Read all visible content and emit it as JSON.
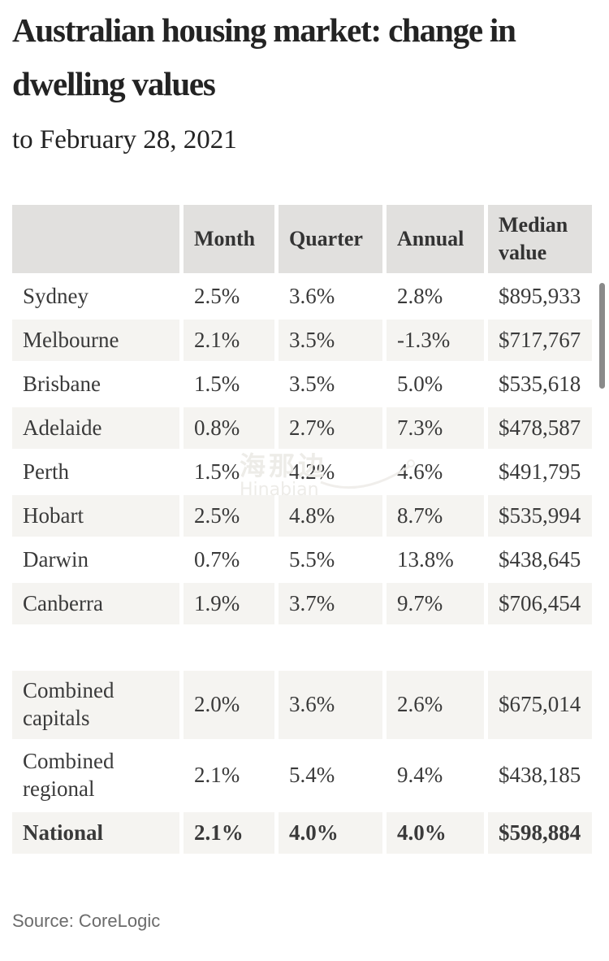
{
  "header": {
    "title": "Australian housing market: change in dwelling values",
    "subtitle": "to February 28, 2021"
  },
  "table": {
    "columns": [
      "",
      "Month",
      "Quarter",
      "Annual",
      "Median value"
    ],
    "rows": [
      {
        "label": "Sydney",
        "month": "2.5%",
        "quarter": "3.6%",
        "annual": "2.8%",
        "median": "$895,933",
        "shade": "white",
        "tall": false,
        "bold": false,
        "spacer_before": false
      },
      {
        "label": "Melbourne",
        "month": "2.1%",
        "quarter": "3.5%",
        "annual": "-1.3%",
        "median": "$717,767",
        "shade": "grey",
        "tall": false,
        "bold": false,
        "spacer_before": false
      },
      {
        "label": "Brisbane",
        "month": "1.5%",
        "quarter": "3.5%",
        "annual": "5.0%",
        "median": "$535,618",
        "shade": "white",
        "tall": false,
        "bold": false,
        "spacer_before": false
      },
      {
        "label": "Adelaide",
        "month": "0.8%",
        "quarter": "2.7%",
        "annual": "7.3%",
        "median": "$478,587",
        "shade": "grey",
        "tall": false,
        "bold": false,
        "spacer_before": false
      },
      {
        "label": "Perth",
        "month": "1.5%",
        "quarter": "4.2%",
        "annual": "4.6%",
        "median": "$491,795",
        "shade": "white",
        "tall": false,
        "bold": false,
        "spacer_before": false
      },
      {
        "label": "Hobart",
        "month": "2.5%",
        "quarter": "4.8%",
        "annual": "8.7%",
        "median": "$535,994",
        "shade": "grey",
        "tall": false,
        "bold": false,
        "spacer_before": false
      },
      {
        "label": "Darwin",
        "month": "0.7%",
        "quarter": "5.5%",
        "annual": "13.8%",
        "median": "$438,645",
        "shade": "white",
        "tall": false,
        "bold": false,
        "spacer_before": false
      },
      {
        "label": "Canberra",
        "month": "1.9%",
        "quarter": "3.7%",
        "annual": "9.7%",
        "median": "$706,454",
        "shade": "grey",
        "tall": false,
        "bold": false,
        "spacer_before": false
      },
      {
        "label": "Combined capitals",
        "month": "2.0%",
        "quarter": "3.6%",
        "annual": "2.6%",
        "median": "$675,014",
        "shade": "grey",
        "tall": true,
        "bold": false,
        "spacer_before": true
      },
      {
        "label": "Combined regional",
        "month": "2.1%",
        "quarter": "5.4%",
        "annual": "9.4%",
        "median": "$438,185",
        "shade": "white",
        "tall": true,
        "bold": false,
        "spacer_before": false
      },
      {
        "label": "National",
        "month": "2.1%",
        "quarter": "4.0%",
        "annual": "4.0%",
        "median": "$598,884",
        "shade": "grey",
        "tall": false,
        "bold": true,
        "spacer_before": false
      }
    ]
  },
  "footer": {
    "source": "Source: CoreLogic"
  },
  "watermark": {
    "line1": "海那边",
    "line2": "Hinabian"
  },
  "colors": {
    "header_bg": "#e1e0de",
    "row_alt_bg": "#f5f4f1",
    "text": "#3a3a3a",
    "title_text": "#232323",
    "source_text": "#6b6b6b",
    "scrollbar_thumb": "#8a8a8a"
  },
  "chart_data": {
    "type": "table",
    "title": "Australian housing market: change in dwelling values",
    "subtitle": "to February 28, 2021",
    "columns": [
      "",
      "Month",
      "Quarter",
      "Annual",
      "Median value"
    ],
    "rows": [
      [
        "Sydney",
        "2.5%",
        "3.6%",
        "2.8%",
        "$895,933"
      ],
      [
        "Melbourne",
        "2.1%",
        "3.5%",
        "-1.3%",
        "$717,767"
      ],
      [
        "Brisbane",
        "1.5%",
        "3.5%",
        "5.0%",
        "$535,618"
      ],
      [
        "Adelaide",
        "0.8%",
        "2.7%",
        "7.3%",
        "$478,587"
      ],
      [
        "Perth",
        "1.5%",
        "4.2%",
        "4.6%",
        "$491,795"
      ],
      [
        "Hobart",
        "2.5%",
        "4.8%",
        "8.7%",
        "$535,994"
      ],
      [
        "Darwin",
        "0.7%",
        "5.5%",
        "13.8%",
        "$438,645"
      ],
      [
        "Canberra",
        "1.9%",
        "3.7%",
        "9.7%",
        "$706,454"
      ],
      [
        "Combined capitals",
        "2.0%",
        "3.6%",
        "2.6%",
        "$675,014"
      ],
      [
        "Combined regional",
        "2.1%",
        "5.4%",
        "9.4%",
        "$438,185"
      ],
      [
        "National",
        "2.1%",
        "4.0%",
        "4.0%",
        "$598,884"
      ]
    ],
    "source": "Source: CoreLogic"
  }
}
